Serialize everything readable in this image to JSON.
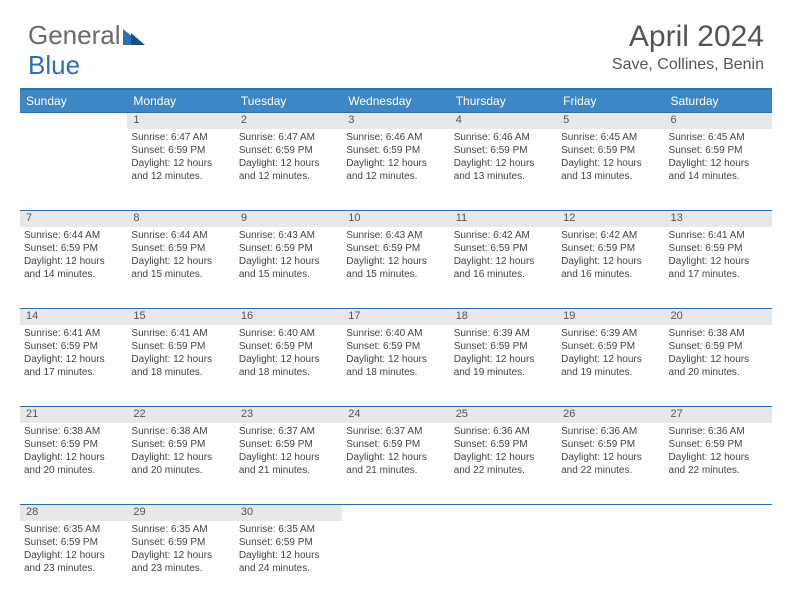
{
  "logo": {
    "text1": "General",
    "text2": "Blue"
  },
  "title": "April 2024",
  "location": "Save, Collines, Benin",
  "colors": {
    "header_bg": "#3d87c7",
    "header_border": "#2d6fb5",
    "daynum_bg": "#e8e8e8",
    "text": "#444444",
    "title_text": "#555555"
  },
  "days_of_week": [
    "Sunday",
    "Monday",
    "Tuesday",
    "Wednesday",
    "Thursday",
    "Friday",
    "Saturday"
  ],
  "weeks": [
    {
      "nums": [
        "",
        "1",
        "2",
        "3",
        "4",
        "5",
        "6"
      ],
      "cells": [
        null,
        {
          "sunrise": "Sunrise: 6:47 AM",
          "sunset": "Sunset: 6:59 PM",
          "d1": "Daylight: 12 hours",
          "d2": "and 12 minutes."
        },
        {
          "sunrise": "Sunrise: 6:47 AM",
          "sunset": "Sunset: 6:59 PM",
          "d1": "Daylight: 12 hours",
          "d2": "and 12 minutes."
        },
        {
          "sunrise": "Sunrise: 6:46 AM",
          "sunset": "Sunset: 6:59 PM",
          "d1": "Daylight: 12 hours",
          "d2": "and 12 minutes."
        },
        {
          "sunrise": "Sunrise: 6:46 AM",
          "sunset": "Sunset: 6:59 PM",
          "d1": "Daylight: 12 hours",
          "d2": "and 13 minutes."
        },
        {
          "sunrise": "Sunrise: 6:45 AM",
          "sunset": "Sunset: 6:59 PM",
          "d1": "Daylight: 12 hours",
          "d2": "and 13 minutes."
        },
        {
          "sunrise": "Sunrise: 6:45 AM",
          "sunset": "Sunset: 6:59 PM",
          "d1": "Daylight: 12 hours",
          "d2": "and 14 minutes."
        }
      ]
    },
    {
      "nums": [
        "7",
        "8",
        "9",
        "10",
        "11",
        "12",
        "13"
      ],
      "cells": [
        {
          "sunrise": "Sunrise: 6:44 AM",
          "sunset": "Sunset: 6:59 PM",
          "d1": "Daylight: 12 hours",
          "d2": "and 14 minutes."
        },
        {
          "sunrise": "Sunrise: 6:44 AM",
          "sunset": "Sunset: 6:59 PM",
          "d1": "Daylight: 12 hours",
          "d2": "and 15 minutes."
        },
        {
          "sunrise": "Sunrise: 6:43 AM",
          "sunset": "Sunset: 6:59 PM",
          "d1": "Daylight: 12 hours",
          "d2": "and 15 minutes."
        },
        {
          "sunrise": "Sunrise: 6:43 AM",
          "sunset": "Sunset: 6:59 PM",
          "d1": "Daylight: 12 hours",
          "d2": "and 15 minutes."
        },
        {
          "sunrise": "Sunrise: 6:42 AM",
          "sunset": "Sunset: 6:59 PM",
          "d1": "Daylight: 12 hours",
          "d2": "and 16 minutes."
        },
        {
          "sunrise": "Sunrise: 6:42 AM",
          "sunset": "Sunset: 6:59 PM",
          "d1": "Daylight: 12 hours",
          "d2": "and 16 minutes."
        },
        {
          "sunrise": "Sunrise: 6:41 AM",
          "sunset": "Sunset: 6:59 PM",
          "d1": "Daylight: 12 hours",
          "d2": "and 17 minutes."
        }
      ]
    },
    {
      "nums": [
        "14",
        "15",
        "16",
        "17",
        "18",
        "19",
        "20"
      ],
      "cells": [
        {
          "sunrise": "Sunrise: 6:41 AM",
          "sunset": "Sunset: 6:59 PM",
          "d1": "Daylight: 12 hours",
          "d2": "and 17 minutes."
        },
        {
          "sunrise": "Sunrise: 6:41 AM",
          "sunset": "Sunset: 6:59 PM",
          "d1": "Daylight: 12 hours",
          "d2": "and 18 minutes."
        },
        {
          "sunrise": "Sunrise: 6:40 AM",
          "sunset": "Sunset: 6:59 PM",
          "d1": "Daylight: 12 hours",
          "d2": "and 18 minutes."
        },
        {
          "sunrise": "Sunrise: 6:40 AM",
          "sunset": "Sunset: 6:59 PM",
          "d1": "Daylight: 12 hours",
          "d2": "and 18 minutes."
        },
        {
          "sunrise": "Sunrise: 6:39 AM",
          "sunset": "Sunset: 6:59 PM",
          "d1": "Daylight: 12 hours",
          "d2": "and 19 minutes."
        },
        {
          "sunrise": "Sunrise: 6:39 AM",
          "sunset": "Sunset: 6:59 PM",
          "d1": "Daylight: 12 hours",
          "d2": "and 19 minutes."
        },
        {
          "sunrise": "Sunrise: 6:38 AM",
          "sunset": "Sunset: 6:59 PM",
          "d1": "Daylight: 12 hours",
          "d2": "and 20 minutes."
        }
      ]
    },
    {
      "nums": [
        "21",
        "22",
        "23",
        "24",
        "25",
        "26",
        "27"
      ],
      "cells": [
        {
          "sunrise": "Sunrise: 6:38 AM",
          "sunset": "Sunset: 6:59 PM",
          "d1": "Daylight: 12 hours",
          "d2": "and 20 minutes."
        },
        {
          "sunrise": "Sunrise: 6:38 AM",
          "sunset": "Sunset: 6:59 PM",
          "d1": "Daylight: 12 hours",
          "d2": "and 20 minutes."
        },
        {
          "sunrise": "Sunrise: 6:37 AM",
          "sunset": "Sunset: 6:59 PM",
          "d1": "Daylight: 12 hours",
          "d2": "and 21 minutes."
        },
        {
          "sunrise": "Sunrise: 6:37 AM",
          "sunset": "Sunset: 6:59 PM",
          "d1": "Daylight: 12 hours",
          "d2": "and 21 minutes."
        },
        {
          "sunrise": "Sunrise: 6:36 AM",
          "sunset": "Sunset: 6:59 PM",
          "d1": "Daylight: 12 hours",
          "d2": "and 22 minutes."
        },
        {
          "sunrise": "Sunrise: 6:36 AM",
          "sunset": "Sunset: 6:59 PM",
          "d1": "Daylight: 12 hours",
          "d2": "and 22 minutes."
        },
        {
          "sunrise": "Sunrise: 6:36 AM",
          "sunset": "Sunset: 6:59 PM",
          "d1": "Daylight: 12 hours",
          "d2": "and 22 minutes."
        }
      ]
    },
    {
      "nums": [
        "28",
        "29",
        "30",
        "",
        "",
        "",
        ""
      ],
      "cells": [
        {
          "sunrise": "Sunrise: 6:35 AM",
          "sunset": "Sunset: 6:59 PM",
          "d1": "Daylight: 12 hours",
          "d2": "and 23 minutes."
        },
        {
          "sunrise": "Sunrise: 6:35 AM",
          "sunset": "Sunset: 6:59 PM",
          "d1": "Daylight: 12 hours",
          "d2": "and 23 minutes."
        },
        {
          "sunrise": "Sunrise: 6:35 AM",
          "sunset": "Sunset: 6:59 PM",
          "d1": "Daylight: 12 hours",
          "d2": "and 24 minutes."
        },
        null,
        null,
        null,
        null
      ]
    }
  ]
}
